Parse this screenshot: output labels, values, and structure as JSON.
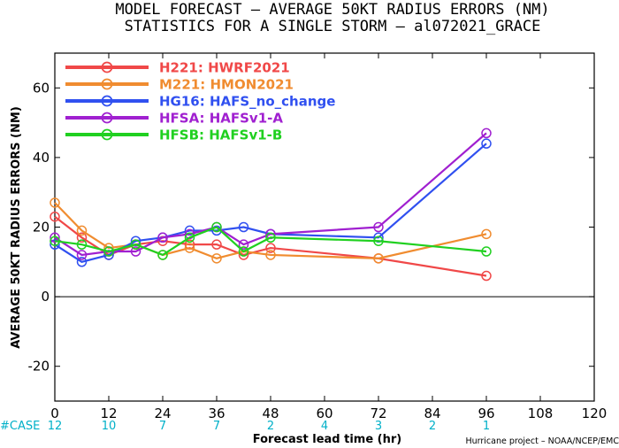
{
  "chart_data": {
    "type": "line",
    "title": "MODEL FORECAST – AVERAGE 50KT RADIUS ERRORS (NM)",
    "subtitle": "STATISTICS FOR A SINGLE STORM – al072021_GRACE",
    "xlabel": "Forecast lead time (hr)",
    "ylabel": "AVERAGE 50KT RADIUS ERRORS (NM)",
    "xlim": [
      0,
      120
    ],
    "ylim": [
      -30,
      70
    ],
    "x_ticks": [
      "0",
      "12",
      "24",
      "36",
      "48",
      "60",
      "72",
      "84",
      "96",
      "108",
      "120"
    ],
    "y_ticks": [
      "-20",
      "0",
      "20",
      "40",
      "60"
    ],
    "grid": false,
    "legend_position": "top-left",
    "series": [
      {
        "name": "H221: HWRF2021",
        "color": "#f04848",
        "x": [
          0,
          6,
          12,
          18,
          24,
          30,
          36,
          42,
          48,
          72,
          96
        ],
        "y": [
          23,
          17,
          12,
          15,
          16,
          15,
          15,
          12,
          14,
          11,
          6
        ]
      },
      {
        "name": "M221: HMON2021",
        "color": "#f08c30",
        "x": [
          0,
          6,
          12,
          18,
          24,
          30,
          36,
          42,
          48,
          72,
          96
        ],
        "y": [
          27,
          19,
          14,
          15,
          12,
          14,
          11,
          13,
          12,
          11,
          18
        ]
      },
      {
        "name": "HG16: HAFS_no_change",
        "color": "#3050f0",
        "x": [
          0,
          6,
          12,
          18,
          24,
          30,
          36,
          42,
          48,
          72,
          96
        ],
        "y": [
          15,
          10,
          12,
          16,
          17,
          19,
          19,
          20,
          18,
          17,
          44
        ]
      },
      {
        "name": "HFSA: HAFSv1-A",
        "color": "#a020d0",
        "x": [
          0,
          6,
          12,
          18,
          24,
          30,
          36,
          42,
          48,
          72,
          96
        ],
        "y": [
          17,
          12,
          13,
          13,
          17,
          18,
          20,
          15,
          18,
          20,
          47
        ]
      },
      {
        "name": "HFSB: HAFSv1-B",
        "color": "#20d020",
        "x": [
          0,
          6,
          12,
          18,
          24,
          30,
          36,
          42,
          48,
          72,
          96
        ],
        "y": [
          16,
          15,
          13,
          15,
          12,
          17,
          20,
          13,
          17,
          16,
          13
        ]
      }
    ],
    "case_label": "#CASE",
    "cases": [
      {
        "x": 0,
        "label": "12"
      },
      {
        "x": 12,
        "label": "10"
      },
      {
        "x": 24,
        "label": "7"
      },
      {
        "x": 36,
        "label": "7"
      },
      {
        "x": 48,
        "label": "2"
      },
      {
        "x": 60,
        "label": "4"
      },
      {
        "x": 72,
        "label": "3"
      },
      {
        "x": 84,
        "label": "2"
      },
      {
        "x": 96,
        "label": "1"
      }
    ],
    "credit": "Hurricane project – NOAA/NCEP/EMC",
    "case_color": "#00b0c8"
  }
}
